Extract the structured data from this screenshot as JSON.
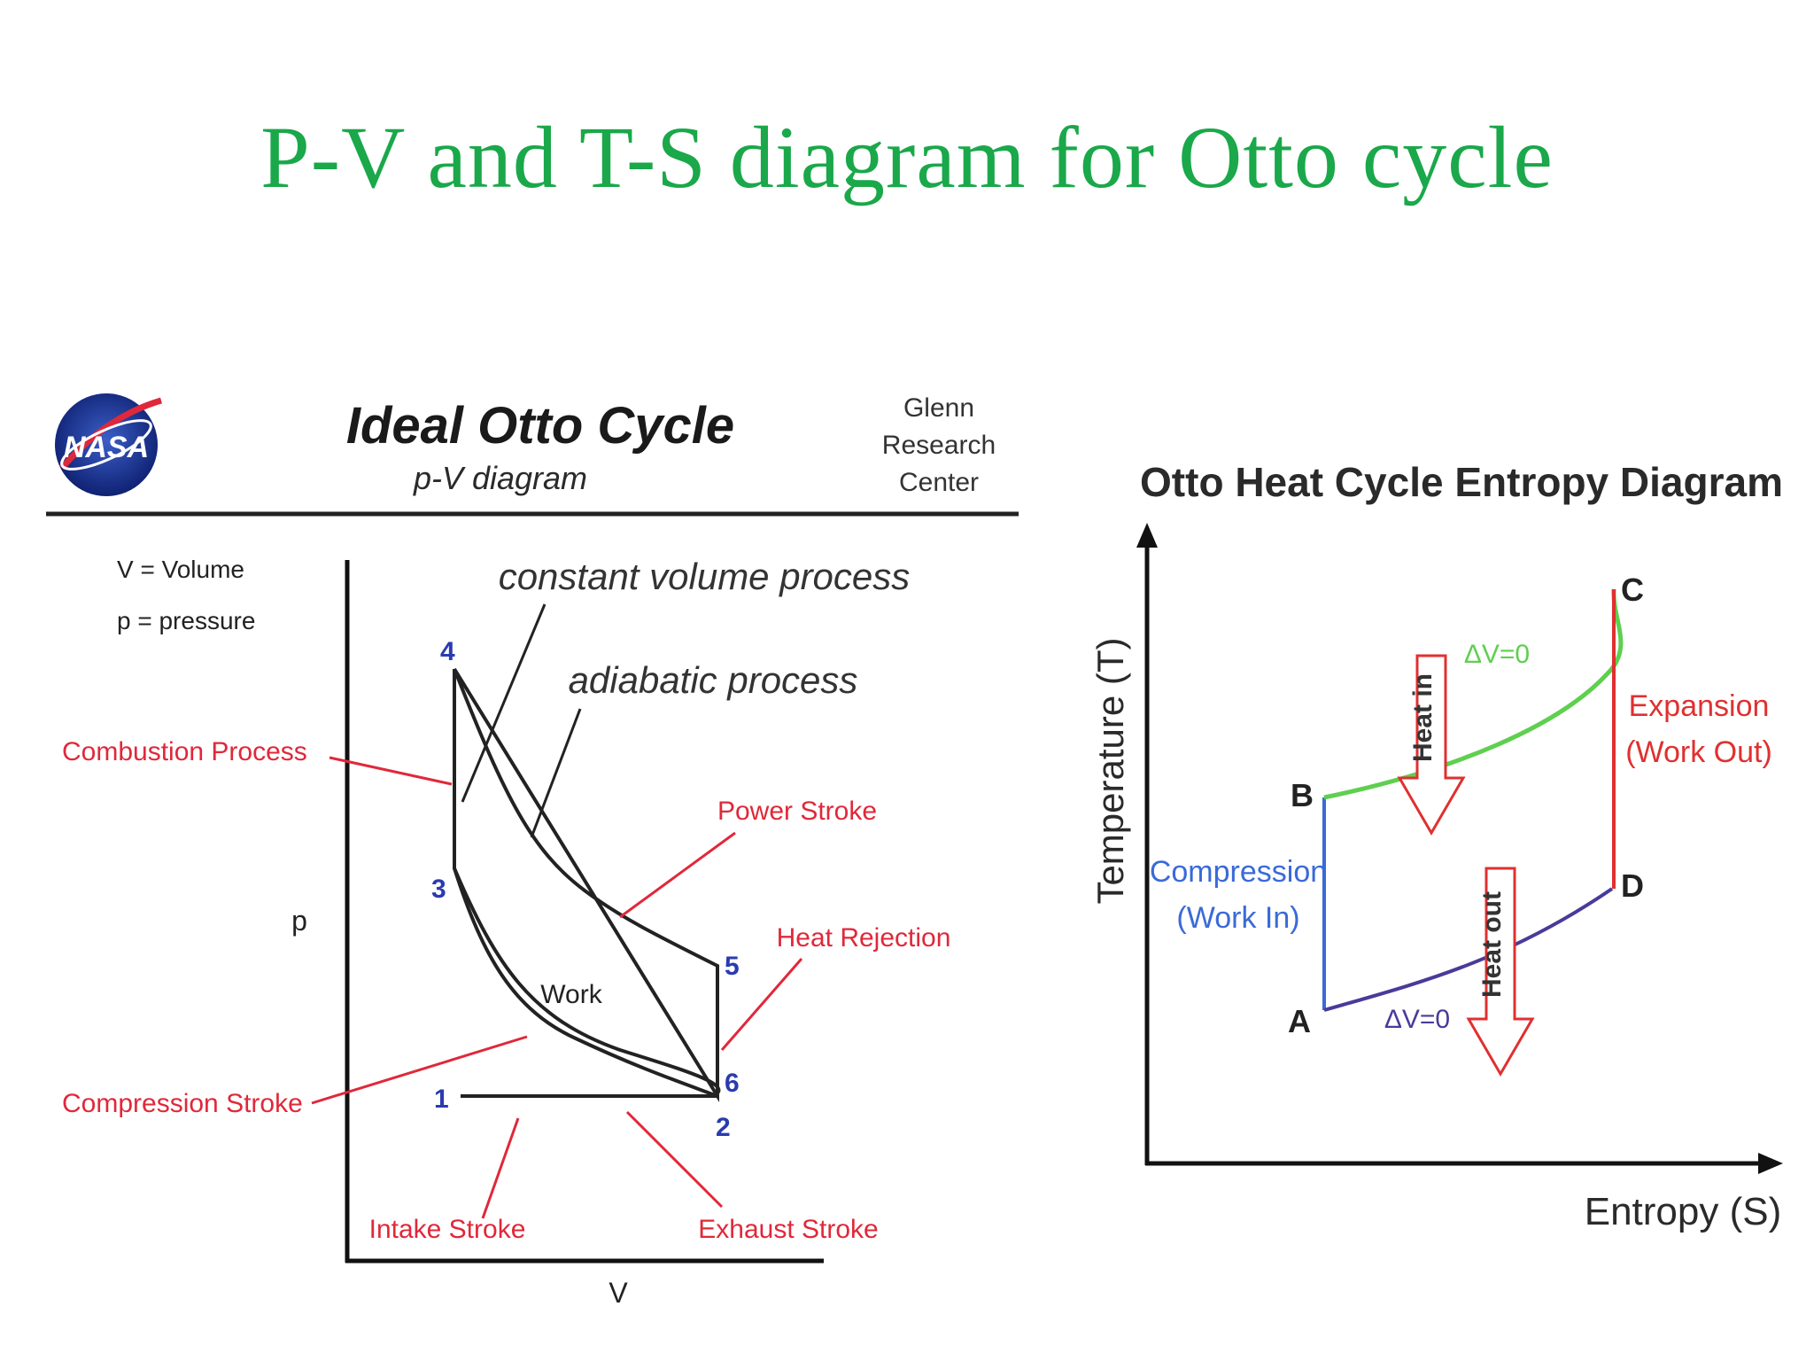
{
  "slide": {
    "title": "P-V and T-S diagram for Otto cycle"
  },
  "colors": {
    "title": "#1aa84a",
    "label_red": "#e0283a",
    "point_blue": "#2a3bb0",
    "ts_green": "#5fcf4f",
    "ts_blue": "#3a6ad8",
    "ts_red": "#e03030",
    "ts_purple": "#4a3a9a"
  },
  "pv_diagram": {
    "logo_text": "NASA",
    "title": "Ideal Otto Cycle",
    "subtitle": "p-V diagram",
    "center": [
      "Glenn",
      "Research",
      "Center"
    ],
    "legend": [
      "V = Volume",
      "p = pressure"
    ],
    "axis_x": "V",
    "axis_y": "p",
    "region_label": "Work",
    "points": [
      {
        "id": "4",
        "label": "4"
      },
      {
        "id": "3",
        "label": "3"
      },
      {
        "id": "5",
        "label": "5"
      },
      {
        "id": "1",
        "label": "1"
      },
      {
        "id": "6",
        "label": "6"
      },
      {
        "id": "2",
        "label": "2"
      }
    ],
    "annotations": {
      "constant_volume": "constant volume process",
      "adiabatic": "adiabatic process",
      "combustion": "Combustion Process",
      "power": "Power Stroke",
      "heat_rejection": "Heat Rejection",
      "compression": "Compression Stroke",
      "intake": "Intake Stroke",
      "exhaust": "Exhaust Stroke"
    }
  },
  "ts_diagram": {
    "title": "Otto Heat Cycle Entropy Diagram",
    "axis_y": "Temperature (T)",
    "axis_x": "Entropy (S)",
    "points": [
      "A",
      "B",
      "C",
      "D"
    ],
    "upper_curve_label": "ΔV=0",
    "lower_curve_label": "ΔV=0",
    "heat_in": "Heat in",
    "heat_out": "Heat out",
    "compression": [
      "Compression",
      "(Work In)"
    ],
    "expansion": [
      "Expansion",
      "(Work Out)"
    ]
  }
}
